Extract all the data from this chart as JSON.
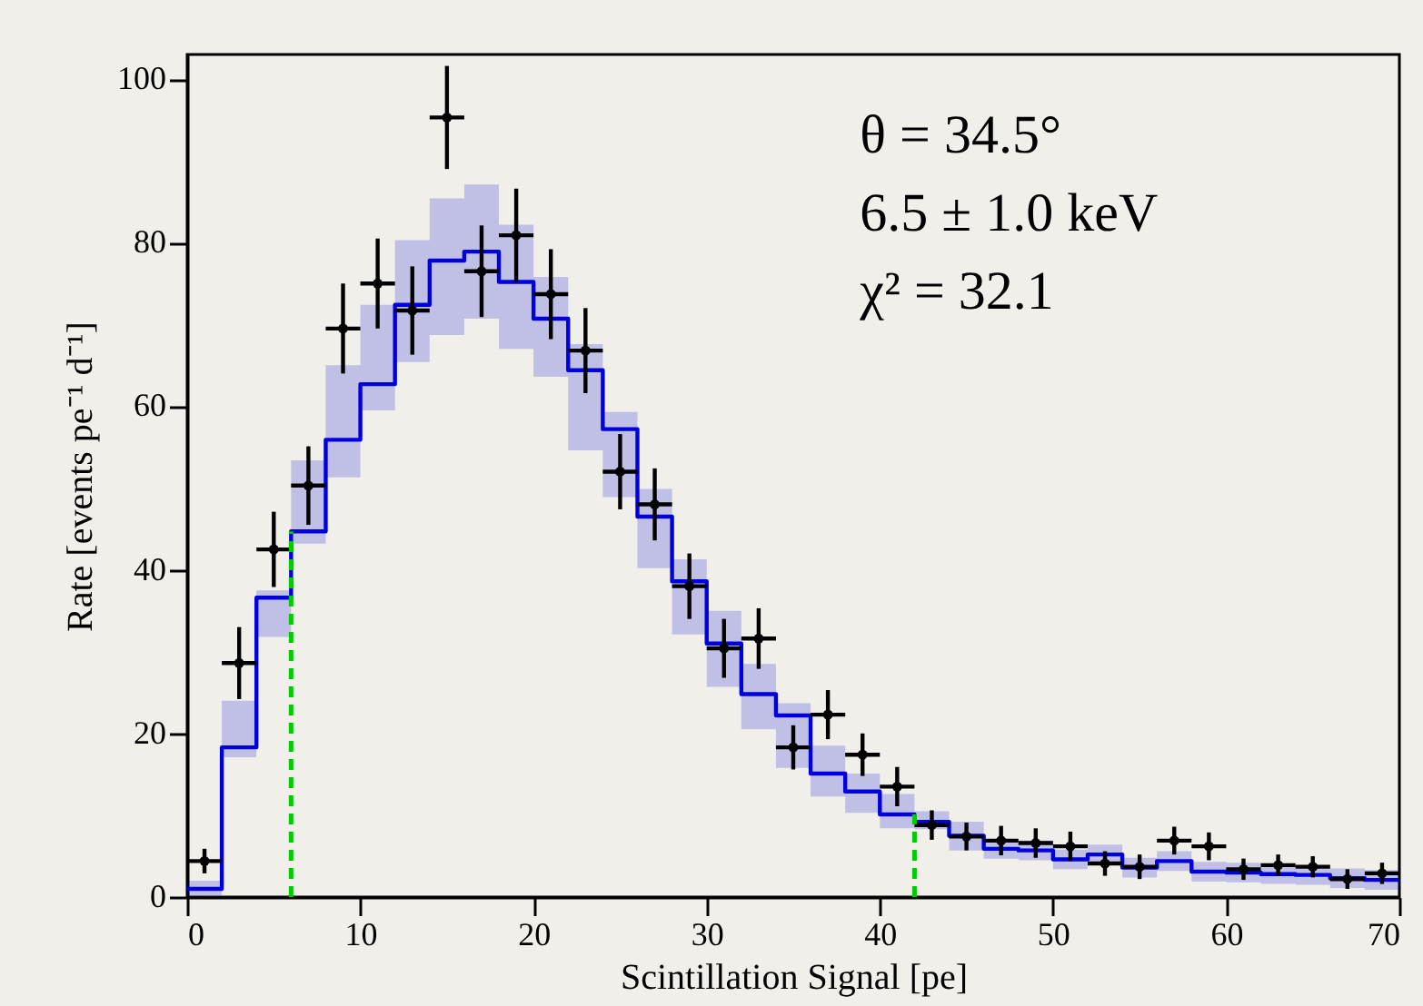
{
  "chart_data": {
    "type": "scatter",
    "xlabel": "Scintillation Signal [pe]",
    "ylabel": "Rate [events pe⁻¹ d⁻¹]",
    "annotations": [
      "θ = 34.5°",
      "6.5 ± 1.0 keV",
      "χ² = 32.1"
    ],
    "xlim": [
      0,
      70
    ],
    "ylim": [
      0,
      103
    ],
    "xticks": [
      0,
      10,
      20,
      30,
      40,
      50,
      60,
      70
    ],
    "yticks": [
      0,
      20,
      40,
      60,
      80,
      100
    ],
    "grid": false,
    "series": [
      {
        "type": "step",
        "color": "#0000dd",
        "line_style": "solid",
        "x": [
          0,
          2,
          4,
          6,
          8,
          10,
          12,
          14,
          16,
          18,
          20,
          22,
          24,
          26,
          28,
          30,
          32,
          34,
          36,
          38,
          40,
          42,
          44,
          46,
          48,
          50,
          52,
          54,
          56,
          58,
          60,
          62,
          64,
          66,
          68,
          70
        ],
        "values": [
          1.0,
          18.3,
          36.6,
          44.7,
          55.9,
          62.7,
          72.4,
          77.8,
          78.9,
          75.2,
          70.7,
          64.4,
          57.2,
          46.5,
          38.6,
          31.0,
          24.8,
          22.2,
          15.1,
          12.9,
          10.1,
          9.2,
          7.5,
          5.9,
          5.7,
          4.6,
          5.2,
          3.6,
          4.4,
          3.1,
          3.0,
          2.8,
          2.7,
          2.3,
          2.1,
          2.1
        ],
        "lower": [
          0.2,
          17.1,
          31.8,
          43.2,
          51.3,
          59.5,
          65.4,
          68.7,
          70.7,
          67.0,
          63.6,
          54.6,
          48.9,
          40.2,
          32.1,
          25.7,
          20.5,
          15.8,
          12.3,
          10.3,
          8.4,
          8.3,
          5.7,
          4.7,
          4.5,
          3.4,
          4.0,
          2.4,
          3.2,
          1.9,
          1.8,
          1.6,
          1.5,
          1.1,
          0.9,
          0.9
        ],
        "upper": [
          2.0,
          24.0,
          37.5,
          53.4,
          65.0,
          72.4,
          80.3,
          85.4,
          87.1,
          82.2,
          75.8,
          67.6,
          59.3,
          49.9,
          41.3,
          35.0,
          28.5,
          23.7,
          18.5,
          15.1,
          12.6,
          10.5,
          9.2,
          7.1,
          6.9,
          5.8,
          6.4,
          4.8,
          5.6,
          4.3,
          4.2,
          4.0,
          3.9,
          3.5,
          3.3,
          3.3
        ]
      },
      {
        "color": "#000000",
        "marker": "circle",
        "x": [
          1,
          3,
          5,
          7,
          9,
          11,
          13,
          15,
          17,
          19,
          21,
          23,
          25,
          27,
          29,
          31,
          33,
          35,
          37,
          39,
          41,
          43,
          45,
          47,
          49,
          51,
          53,
          55,
          57,
          59,
          61,
          63,
          65,
          67,
          69
        ],
        "values": [
          4.4,
          28.6,
          42.5,
          50.3,
          69.5,
          75.0,
          71.7,
          95.3,
          76.5,
          80.9,
          73.7,
          66.8,
          52.0,
          48.0,
          38.0,
          30.4,
          31.6,
          18.3,
          22.3,
          17.4,
          13.5,
          8.8,
          7.4,
          6.9,
          6.6,
          6.2,
          4.1,
          3.7,
          6.9,
          6.2,
          3.4,
          3.9,
          3.7,
          2.2,
          2.9
        ],
        "errors": [
          1.5,
          4.4,
          4.6,
          4.8,
          5.5,
          5.5,
          5.4,
          6.3,
          5.6,
          5.7,
          5.5,
          5.2,
          4.6,
          4.4,
          4.0,
          3.6,
          3.7,
          2.7,
          3.0,
          2.6,
          2.4,
          1.8,
          1.7,
          1.8,
          1.8,
          1.8,
          1.5,
          1.5,
          1.7,
          1.7,
          1.3,
          1.3,
          1.3,
          1.2,
          1.3
        ],
        "xerrors": [
          1,
          1,
          1,
          1,
          1,
          1,
          1,
          1,
          1,
          1,
          1,
          1,
          1,
          1,
          1,
          1,
          1,
          1,
          1,
          1,
          1,
          1,
          1,
          1,
          1,
          1,
          1,
          1,
          1,
          1,
          1,
          1,
          1,
          1,
          1
        ]
      }
    ],
    "ref_lines": [
      {
        "axis": "x",
        "value": 6,
        "color": "#00cc00",
        "line_style": "dashed"
      },
      {
        "axis": "x",
        "value": 42,
        "color": "#00cc00",
        "line_style": "dashed"
      }
    ]
  }
}
